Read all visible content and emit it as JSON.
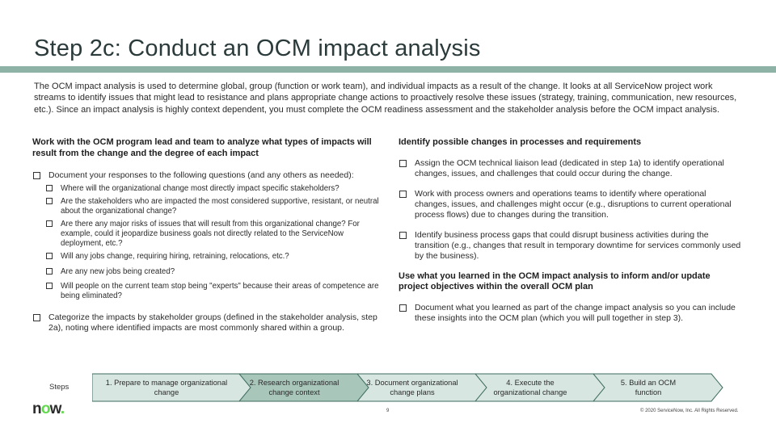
{
  "title": "Step 2c: Conduct an OCM impact analysis",
  "intro": "The OCM impact analysis is used to determine global, group (function or work team), and individual impacts as a result of the change. It looks at all ServiceNow project work streams to identify issues that might lead to resistance and plans appropriate change actions to proactively resolve these issues (strategy, training, communication, new resources, etc.). Since an impact analysis is highly context dependent, you must complete the OCM readiness assessment and the stakeholder analysis before the OCM impact analysis.",
  "left": {
    "heading": "Work with the OCM program lead and team to analyze what types of impacts will result from the change and the degree of each impact",
    "item1": "Document your responses to the following questions (and any others as needed):",
    "questions": [
      "Where will the organizational change most directly impact specific stakeholders?",
      "Are the stakeholders who are impacted the most considered supportive, resistant, or neutral about the organizational change?",
      "Are there any major risks of issues that will result from this organizational change? For example, could it jeopardize business goals not directly related to the ServiceNow deployment, etc.?",
      "Will any jobs change, requiring hiring, retraining, relocations, etc.?",
      "Are any new jobs being created?",
      "Will people on the current team stop being \"experts\" because their areas of competence are being eliminated?"
    ],
    "item2": "Categorize the impacts by stakeholder groups (defined in the stakeholder analysis, step 2a), noting where identified impacts are most commonly shared within a group."
  },
  "right": {
    "heading1": "Identify possible changes in processes and requirements",
    "items1": [
      "Assign the OCM technical liaison lead (dedicated in step 1a) to identify operational changes, issues, and challenges that could occur during the change.",
      "Work with process owners and operations teams to identify where operational changes, issues, and challenges might occur (e.g., disruptions to current operational process flows) due to changes during the transition.",
      "Identify business process gaps that could disrupt business activities during the transition (e.g., changes that result in temporary downtime for services commonly used by the business)."
    ],
    "heading2": "Use what you learned in the OCM impact analysis to inform and/or update project objectives within the overall OCM plan",
    "items2": [
      "Document what you learned as part of the change impact analysis so you can include these insights into the OCM plan (which you will pull together in step 3)."
    ]
  },
  "steps": {
    "label": "Steps",
    "items": [
      {
        "line1": "1. Prepare to manage organizational",
        "line2": "change"
      },
      {
        "line1": "2. Research organizational",
        "line2": "change context"
      },
      {
        "line1": "3. Document organizational",
        "line2": "change plans"
      },
      {
        "line1": "4. Execute the",
        "line2": "organizational change"
      },
      {
        "line1": "5. Build an OCM",
        "line2": "function"
      }
    ],
    "active_index": 1,
    "colors": {
      "fill": "#d7e6e1",
      "active_fill": "#a9c6bb",
      "stroke": "#3c6b5e"
    }
  },
  "logo": {
    "n": "n",
    "o": "o",
    "w": "w",
    "dot": "."
  },
  "page_number": "9",
  "copyright": "© 2020 ServiceNow, Inc. All Rights Reserved."
}
